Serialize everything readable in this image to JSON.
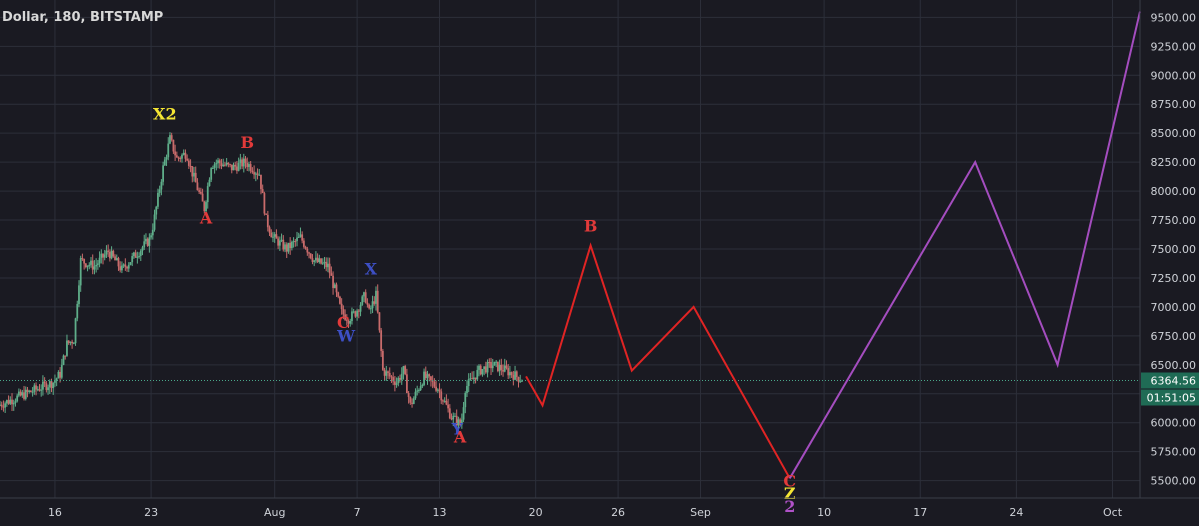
{
  "header": {
    "symbol_line": "Dollar, 180, BITSTAMP"
  },
  "colors": {
    "background": "#1a1a22",
    "grid": "#2c2f3a",
    "axis_text": "#cfd2d8",
    "up_candle": "#5fae8a",
    "down_candle": "#c96b6b",
    "projection_red": "#e02424",
    "projection_purple": "#a44dbf",
    "price_line": "#4aa88a",
    "label_yellow": "#f5e634",
    "label_red": "#e23a3a",
    "label_blue": "#3d4fc4",
    "label_purple": "#b052c8"
  },
  "price_tag": {
    "value": "6364.56"
  },
  "timer_tag": {
    "value": "01:51:05"
  },
  "chart_data": {
    "type": "candlestick",
    "y_axis": {
      "range": [
        5350,
        9650
      ],
      "ticks": [
        "5500.00",
        "5750.00",
        "6000.00",
        "6250.00",
        "6500.00",
        "6750.00",
        "7000.00",
        "7250.00",
        "7500.00",
        "7750.00",
        "8000.00",
        "8250.00",
        "8500.00",
        "8750.00",
        "9000.00",
        "9250.00",
        "9500.00"
      ]
    },
    "x_axis": {
      "range": [
        "Jul 12",
        "Oct 3"
      ],
      "ticks": [
        {
          "date": "Jul 16",
          "label": "16"
        },
        {
          "date": "Jul 23",
          "label": "23"
        },
        {
          "date": "Aug 1",
          "label": "Aug"
        },
        {
          "date": "Aug 7",
          "label": "7"
        },
        {
          "date": "Aug 13",
          "label": "13"
        },
        {
          "date": "Aug 20",
          "label": "20"
        },
        {
          "date": "Aug 26",
          "label": "26"
        },
        {
          "date": "Sep 1",
          "label": "Sep"
        },
        {
          "date": "Sep 10",
          "label": "10"
        },
        {
          "date": "Sep 17",
          "label": "17"
        },
        {
          "date": "Sep 24",
          "label": "24"
        },
        {
          "date": "Oct 1",
          "label": "Oct"
        }
      ]
    },
    "price_path": [
      [
        "Jul 12",
        6150
      ],
      [
        "Jul 13",
        6200
      ],
      [
        "Jul 14",
        6250
      ],
      [
        "Jul 15",
        6300
      ],
      [
        "Jul 16",
        6350
      ],
      [
        "Jul 16.5",
        6420
      ],
      [
        "Jul 17",
        6680
      ],
      [
        "Jul 17.5",
        6720
      ],
      [
        "Jul 18",
        7400
      ],
      [
        "Jul 19",
        7350
      ],
      [
        "Jul 20",
        7480
      ],
      [
        "Jul 21",
        7320
      ],
      [
        "Jul 22",
        7450
      ],
      [
        "Jul 23",
        7580
      ],
      [
        "Jul 23.3",
        7720
      ],
      [
        "Jul 24",
        8200
      ],
      [
        "Jul 24.5",
        8450
      ],
      [
        "Jul 25",
        8280
      ],
      [
        "Jul 25.7",
        8330
      ],
      [
        "Jul 26",
        8200
      ],
      [
        "Jul 27",
        7850
      ],
      [
        "Jul 27.5",
        8230
      ],
      [
        "Jul 28",
        8250
      ],
      [
        "Jul 29",
        8200
      ],
      [
        "Jul 30",
        8250
      ],
      [
        "Jul 31",
        8150
      ],
      [
        "Jul 31.5",
        7750
      ],
      [
        "Aug 1",
        7600
      ],
      [
        "Aug 2",
        7500
      ],
      [
        "Aug 3",
        7600
      ],
      [
        "Aug 4",
        7400
      ],
      [
        "Aug 5",
        7350
      ],
      [
        "Aug 6",
        6950
      ],
      [
        "Aug 6.5",
        6900
      ],
      [
        "Aug 7",
        6950
      ],
      [
        "Aug 7.7",
        7100
      ],
      [
        "Aug 8",
        6950
      ],
      [
        "Aug 8.5",
        7100
      ],
      [
        "Aug 9",
        6450
      ],
      [
        "Aug 10",
        6350
      ],
      [
        "Aug 10.5",
        6450
      ],
      [
        "Aug 11",
        6150
      ],
      [
        "Aug 12",
        6400
      ],
      [
        "Aug 13",
        6300
      ],
      [
        "Aug 14",
        6050
      ],
      [
        "Aug 14.7",
        5980
      ],
      [
        "Aug 15",
        6300
      ],
      [
        "Aug 16",
        6450
      ],
      [
        "Aug 17",
        6500
      ],
      [
        "Aug 18",
        6450
      ],
      [
        "Aug 19",
        6380
      ]
    ],
    "projections": [
      {
        "color": "red",
        "points": [
          [
            "Aug 19.3",
            6400
          ],
          [
            "Aug 20.5",
            6150
          ],
          [
            "Aug 24",
            7530
          ],
          [
            "Aug 27",
            6450
          ],
          [
            "Aug 31.5",
            7000
          ],
          [
            "Sep 7.5",
            5520
          ]
        ]
      },
      {
        "color": "purple",
        "points": [
          [
            "Sep 7.5",
            5520
          ],
          [
            "Sep 21",
            8250
          ],
          [
            "Sep 27",
            6500
          ],
          [
            "Oct 3",
            9550
          ]
        ]
      }
    ],
    "annotations": [
      {
        "text": "X2",
        "date": "Jul 24",
        "price": 8620,
        "color": "yellow"
      },
      {
        "text": "B",
        "date": "Jul 30",
        "price": 8370,
        "color": "red"
      },
      {
        "text": "A",
        "date": "Jul 27",
        "price": 7720,
        "color": "red"
      },
      {
        "text": "X",
        "date": "Aug 8",
        "price": 7280,
        "color": "blue"
      },
      {
        "text": "C",
        "date": "Aug 6",
        "price": 6820,
        "color": "red"
      },
      {
        "text": "W",
        "date": "Aug 6.2",
        "price": 6700,
        "color": "blue"
      },
      {
        "text": "Y",
        "date": "Aug 14.3",
        "price": 5900,
        "color": "blue"
      },
      {
        "text": "A",
        "date": "Aug 14.5",
        "price": 5830,
        "color": "red"
      },
      {
        "text": "B",
        "date": "Aug 24",
        "price": 7650,
        "color": "red"
      },
      {
        "text": "C",
        "date": "Sep 7.5",
        "price": 5450,
        "color": "red"
      },
      {
        "text": "Z",
        "date": "Sep 7.5",
        "price": 5340,
        "color": "yellow"
      },
      {
        "text": "2",
        "date": "Sep 7.5",
        "price": 5230,
        "color": "purple"
      }
    ],
    "last_price": 6364.56
  }
}
